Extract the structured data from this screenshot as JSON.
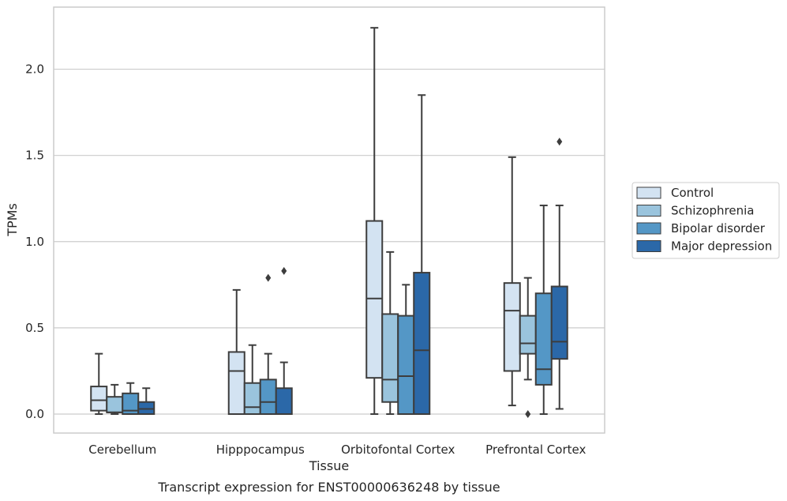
{
  "chart_data": {
    "type": "box",
    "xlabel": "Tissue",
    "ylabel": "TPMs",
    "caption": "Transcript expression for ENST00000636248 by tissue",
    "ylim": [
      -0.11,
      2.36
    ],
    "yticks": [
      "0.0",
      "0.5",
      "1.0",
      "1.5",
      "2.0"
    ],
    "grid": "horizontal",
    "legend_position": "right",
    "categories": [
      "Cerebellum",
      "Hipppocampus",
      "Orbitofontal Cortex",
      "Prefrontal Cortex"
    ],
    "series": [
      {
        "name": "Control",
        "color": "#d3e3f2",
        "boxes": [
          {
            "whislo": 0.0,
            "q1": 0.02,
            "med": 0.08,
            "q3": 0.16,
            "whishi": 0.35,
            "fliers": []
          },
          {
            "whislo": 0.0,
            "q1": 0.0,
            "med": 0.25,
            "q3": 0.36,
            "whishi": 0.72,
            "fliers": []
          },
          {
            "whislo": 0.0,
            "q1": 0.21,
            "med": 0.67,
            "q3": 1.12,
            "whishi": 2.24,
            "fliers": []
          },
          {
            "whislo": 0.05,
            "q1": 0.25,
            "med": 0.6,
            "q3": 0.76,
            "whishi": 1.49,
            "fliers": []
          }
        ]
      },
      {
        "name": "Schizophrenia",
        "color": "#9ac4dd",
        "boxes": [
          {
            "whislo": 0.0,
            "q1": 0.01,
            "med": 0.01,
            "q3": 0.1,
            "whishi": 0.17,
            "fliers": []
          },
          {
            "whislo": 0.0,
            "q1": 0.0,
            "med": 0.04,
            "q3": 0.18,
            "whishi": 0.4,
            "fliers": []
          },
          {
            "whislo": 0.0,
            "q1": 0.07,
            "med": 0.2,
            "q3": 0.58,
            "whishi": 0.94,
            "fliers": []
          },
          {
            "whislo": 0.2,
            "q1": 0.35,
            "med": 0.41,
            "q3": 0.57,
            "whishi": 0.79,
            "fliers": [
              0.0
            ]
          }
        ]
      },
      {
        "name": "Bipolar disorder",
        "color": "#5497c6",
        "boxes": [
          {
            "whislo": 0.0,
            "q1": 0.0,
            "med": 0.02,
            "q3": 0.12,
            "whishi": 0.18,
            "fliers": []
          },
          {
            "whislo": 0.0,
            "q1": 0.0,
            "med": 0.07,
            "q3": 0.2,
            "whishi": 0.35,
            "fliers": [
              0.79
            ]
          },
          {
            "whislo": 0.0,
            "q1": 0.0,
            "med": 0.22,
            "q3": 0.57,
            "whishi": 0.75,
            "fliers": []
          },
          {
            "whislo": 0.0,
            "q1": 0.17,
            "med": 0.26,
            "q3": 0.7,
            "whishi": 1.21,
            "fliers": []
          }
        ]
      },
      {
        "name": "Major depression",
        "color": "#2b68a8",
        "boxes": [
          {
            "whislo": 0.0,
            "q1": 0.0,
            "med": 0.03,
            "q3": 0.07,
            "whishi": 0.15,
            "fliers": []
          },
          {
            "whislo": 0.0,
            "q1": 0.0,
            "med": 0.0,
            "q3": 0.15,
            "whishi": 0.3,
            "fliers": [
              0.83
            ]
          },
          {
            "whislo": 0.0,
            "q1": 0.0,
            "med": 0.37,
            "q3": 0.82,
            "whishi": 1.85,
            "fliers": []
          },
          {
            "whislo": 0.03,
            "q1": 0.32,
            "med": 0.42,
            "q3": 0.74,
            "whishi": 1.21,
            "fliers": [
              1.58
            ]
          }
        ]
      }
    ]
  }
}
